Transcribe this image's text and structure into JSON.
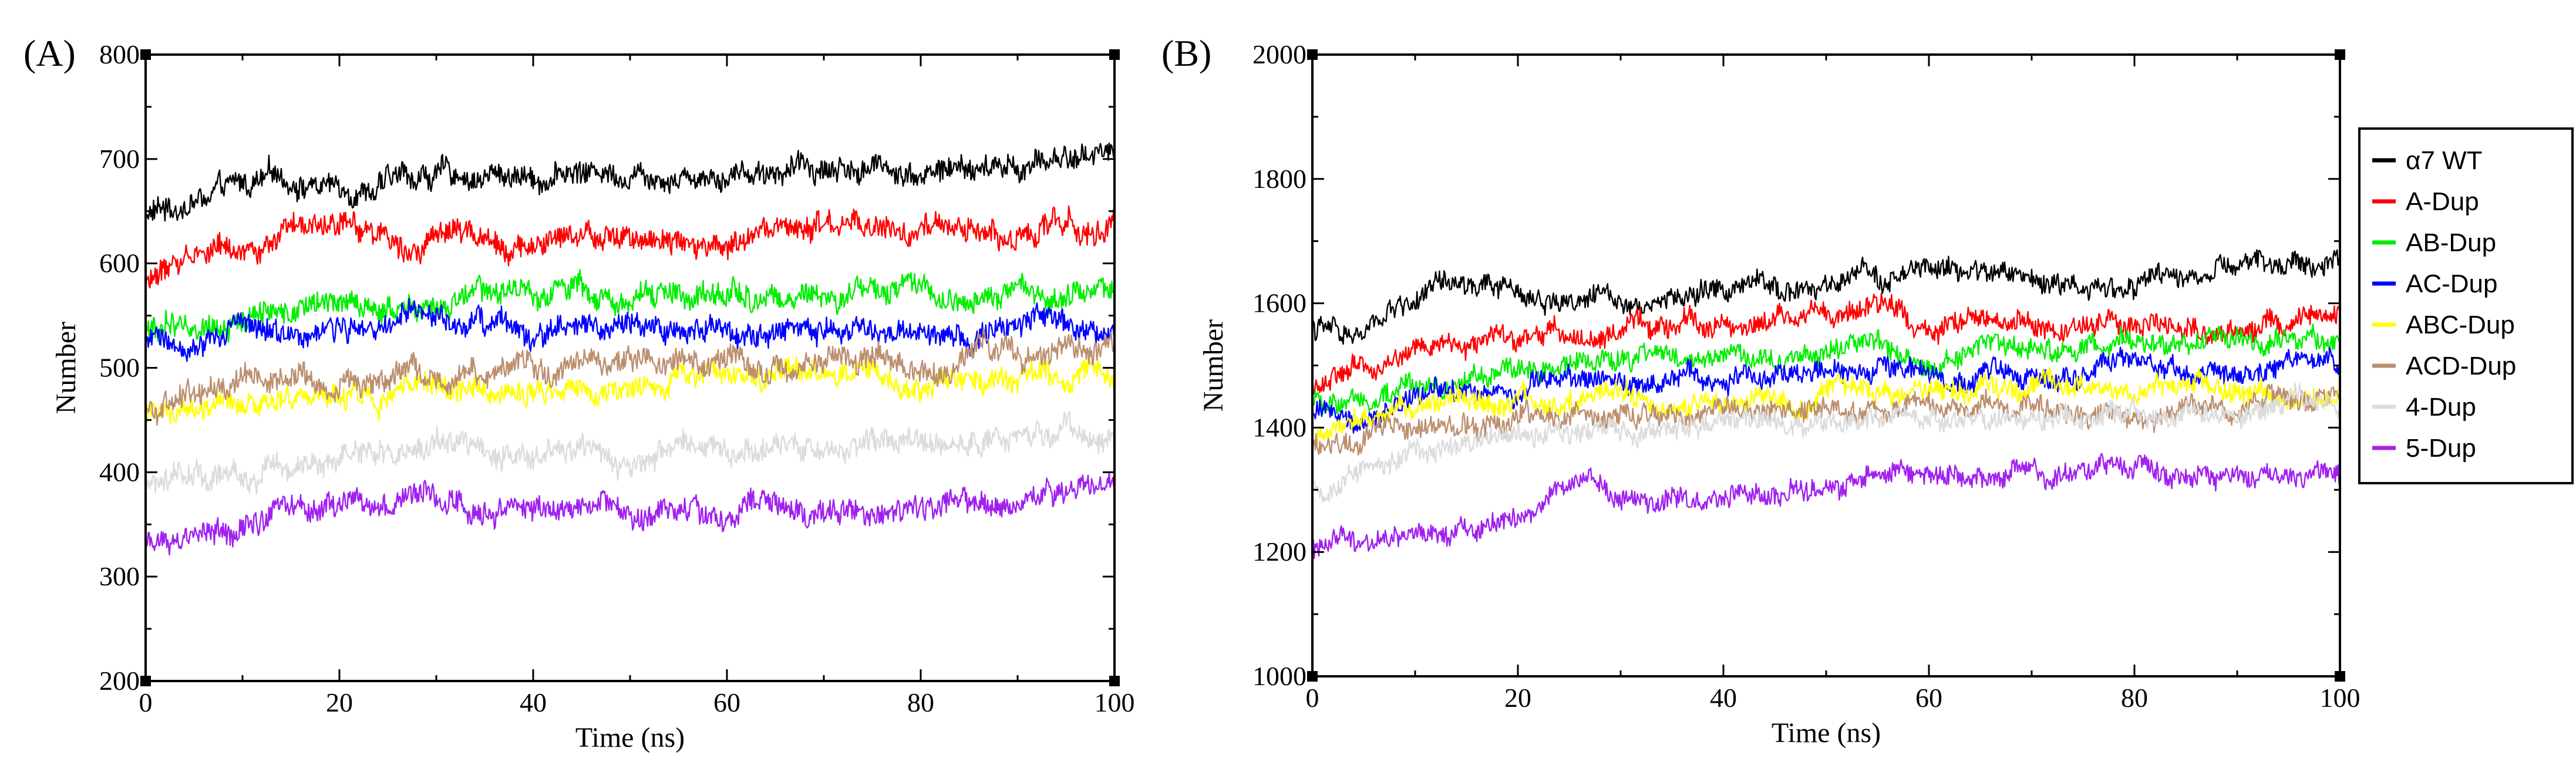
{
  "chart_data": [
    {
      "type": "line",
      "panel_label": "(A)",
      "xlabel": "Time (ns)",
      "ylabel": "Number",
      "xlim": [
        0,
        100
      ],
      "ylim": [
        200,
        800
      ],
      "xticks": [
        0,
        20,
        40,
        60,
        80,
        100
      ],
      "xtick_labels": [
        "0",
        "20",
        "40",
        "60",
        "80",
        "100"
      ],
      "yticks": [
        200,
        300,
        400,
        500,
        600,
        700,
        800
      ],
      "ytick_labels": [
        "200",
        "300",
        "400",
        "500",
        "600",
        "700",
        "800"
      ],
      "x_minor_step": 10,
      "y_minor_step": 50,
      "noise_amplitude": 12,
      "series": [
        {
          "name": "α7 WT",
          "color": "#000000",
          "x": [
            0,
            5,
            10,
            15,
            20,
            30,
            40,
            50,
            60,
            70,
            80,
            90,
            95,
            100
          ],
          "values": [
            645,
            660,
            670,
            680,
            675,
            685,
            685,
            690,
            690,
            695,
            690,
            690,
            700,
            710
          ]
        },
        {
          "name": "A-Dup",
          "color": "#ff0000",
          "x": [
            0,
            5,
            10,
            15,
            20,
            30,
            40,
            50,
            55,
            60,
            70,
            80,
            90,
            100
          ],
          "values": [
            580,
            610,
            620,
            625,
            625,
            630,
            620,
            620,
            635,
            615,
            630,
            625,
            630,
            640
          ]
        },
        {
          "name": "AB-Dup",
          "color": "#00ee00",
          "x": [
            0,
            10,
            20,
            30,
            40,
            45,
            50,
            60,
            70,
            80,
            90,
            100
          ],
          "values": [
            535,
            550,
            560,
            555,
            570,
            580,
            570,
            570,
            565,
            565,
            570,
            575
          ]
        },
        {
          "name": "AC-Dup",
          "color": "#0000ff",
          "x": [
            0,
            10,
            20,
            30,
            40,
            50,
            60,
            70,
            80,
            90,
            100
          ],
          "values": [
            520,
            535,
            540,
            540,
            535,
            530,
            535,
            530,
            530,
            545,
            530
          ]
        },
        {
          "name": "ABC-Dup",
          "color": "#ffff00",
          "x": [
            0,
            10,
            20,
            30,
            40,
            50,
            60,
            70,
            80,
            90,
            100
          ],
          "values": [
            455,
            460,
            470,
            480,
            480,
            485,
            490,
            495,
            490,
            490,
            495
          ]
        },
        {
          "name": "ACD-Dup",
          "color": "#bc8f6f",
          "x": [
            0,
            10,
            20,
            25,
            30,
            40,
            50,
            60,
            70,
            80,
            90,
            100
          ],
          "values": [
            465,
            480,
            485,
            500,
            490,
            490,
            500,
            505,
            505,
            500,
            505,
            510
          ]
        },
        {
          "name": "4-Dup",
          "color": "#dcdcdc",
          "x": [
            0,
            10,
            20,
            30,
            40,
            50,
            60,
            70,
            80,
            90,
            100
          ],
          "values": [
            390,
            405,
            415,
            420,
            420,
            420,
            425,
            425,
            430,
            440,
            430
          ]
        },
        {
          "name": "5-Dup",
          "color": "#a020f0",
          "x": [
            0,
            10,
            20,
            30,
            40,
            50,
            60,
            70,
            80,
            90,
            100
          ],
          "values": [
            330,
            350,
            370,
            375,
            365,
            365,
            365,
            370,
            370,
            375,
            385
          ]
        }
      ]
    },
    {
      "type": "line",
      "panel_label": "(B)",
      "xlabel": "Time (ns)",
      "ylabel": "Number",
      "xlim": [
        0,
        100
      ],
      "ylim": [
        1000,
        2000
      ],
      "xticks": [
        0,
        20,
        40,
        60,
        80,
        100
      ],
      "xtick_labels": [
        "0",
        "20",
        "40",
        "60",
        "80",
        "100"
      ],
      "yticks": [
        1000,
        1200,
        1400,
        1600,
        1800,
        2000
      ],
      "ytick_labels": [
        "1000",
        "1200",
        "1400",
        "1600",
        "1800",
        "2000"
      ],
      "x_minor_step": 10,
      "y_minor_step": 100,
      "noise_amplitude": 18,
      "legend_position": "right",
      "series": [
        {
          "name": "α7 WT",
          "color": "#000000",
          "x": [
            0,
            5,
            8,
            12,
            20,
            30,
            40,
            50,
            60,
            70,
            80,
            90,
            100
          ],
          "values": [
            1560,
            1545,
            1590,
            1620,
            1610,
            1610,
            1620,
            1620,
            1650,
            1640,
            1630,
            1650,
            1665
          ]
        },
        {
          "name": "A-Dup",
          "color": "#ff0000",
          "x": [
            0,
            5,
            10,
            20,
            30,
            40,
            50,
            55,
            60,
            70,
            80,
            90,
            100
          ],
          "values": [
            1470,
            1490,
            1520,
            1550,
            1550,
            1570,
            1580,
            1590,
            1570,
            1560,
            1555,
            1560,
            1560
          ]
        },
        {
          "name": "AB-Dup",
          "color": "#00ee00",
          "x": [
            0,
            10,
            20,
            30,
            40,
            50,
            60,
            70,
            80,
            90,
            100
          ],
          "values": [
            1440,
            1470,
            1490,
            1500,
            1515,
            1525,
            1520,
            1530,
            1530,
            1535,
            1540
          ]
        },
        {
          "name": "AC-Dup",
          "color": "#0000ff",
          "x": [
            0,
            10,
            20,
            30,
            40,
            50,
            60,
            70,
            80,
            90,
            100
          ],
          "values": [
            1420,
            1440,
            1460,
            1470,
            1480,
            1485,
            1490,
            1490,
            1495,
            1495,
            1500
          ]
        },
        {
          "name": "ABC-Dup",
          "color": "#ffff00",
          "x": [
            0,
            10,
            20,
            30,
            40,
            50,
            60,
            70,
            80,
            90,
            100
          ],
          "values": [
            1380,
            1420,
            1440,
            1440,
            1450,
            1450,
            1455,
            1455,
            1460,
            1460,
            1450
          ]
        },
        {
          "name": "ACD-Dup",
          "color": "#bc8f6f",
          "x": [
            0,
            10,
            20,
            30,
            40,
            50,
            60,
            70,
            80,
            90,
            100
          ],
          "values": [
            1370,
            1390,
            1410,
            1420,
            1425,
            1425,
            1425,
            1430,
            1430,
            1430,
            1440
          ]
        },
        {
          "name": "4-Dup",
          "color": "#dcdcdc",
          "x": [
            0,
            10,
            20,
            30,
            40,
            50,
            60,
            70,
            80,
            90,
            100
          ],
          "values": [
            1300,
            1350,
            1380,
            1400,
            1410,
            1410,
            1415,
            1420,
            1420,
            1425,
            1430
          ]
        },
        {
          "name": "5-Dup",
          "color": "#a020f0",
          "x": [
            0,
            10,
            20,
            27,
            30,
            40,
            50,
            60,
            70,
            80,
            90,
            100
          ],
          "values": [
            1200,
            1230,
            1260,
            1310,
            1280,
            1280,
            1300,
            1330,
            1325,
            1330,
            1320,
            1330
          ]
        }
      ]
    }
  ]
}
